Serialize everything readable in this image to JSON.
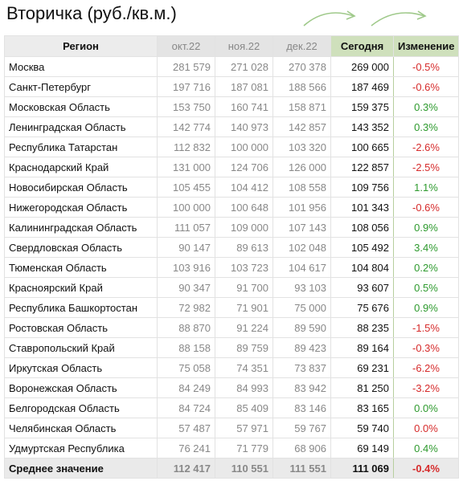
{
  "title": "Вторичка (руб./кв.м.)",
  "colors": {
    "positive": "#2e9a2e",
    "negative": "#d62b2b",
    "highlight_header": "#cfe0bc",
    "arrow": "#9fc98a"
  },
  "headers": {
    "region": "Регион",
    "m1": "окт.22",
    "m2": "ноя.22",
    "m3": "дек.22",
    "today": "Сегодня",
    "change": "Изменение"
  },
  "rows": [
    {
      "region": "Москва",
      "m1": "281 579",
      "m2": "271 028",
      "m3": "270 378",
      "today": "269 000",
      "change": "-0.5%",
      "dir": "neg"
    },
    {
      "region": "Санкт-Петербург",
      "m1": "197 716",
      "m2": "187 081",
      "m3": "188 566",
      "today": "187 469",
      "change": "-0.6%",
      "dir": "neg"
    },
    {
      "region": "Московская Область",
      "m1": "153 750",
      "m2": "160 741",
      "m3": "158 871",
      "today": "159 375",
      "change": "0.3%",
      "dir": "pos"
    },
    {
      "region": "Ленинградская Область",
      "m1": "142 774",
      "m2": "140 973",
      "m3": "142 857",
      "today": "143 352",
      "change": "0.3%",
      "dir": "pos"
    },
    {
      "region": "Республика Татарстан",
      "m1": "112 832",
      "m2": "100 000",
      "m3": "103 320",
      "today": "100 665",
      "change": "-2.6%",
      "dir": "neg"
    },
    {
      "region": "Краснодарский Край",
      "m1": "131 000",
      "m2": "124 706",
      "m3": "126 000",
      "today": "122 857",
      "change": "-2.5%",
      "dir": "neg"
    },
    {
      "region": "Новосибирская Область",
      "m1": "105 455",
      "m2": "104 412",
      "m3": "108 558",
      "today": "109 756",
      "change": "1.1%",
      "dir": "pos"
    },
    {
      "region": "Нижегородская Область",
      "m1": "100 000",
      "m2": "100 648",
      "m3": "101 956",
      "today": "101 343",
      "change": "-0.6%",
      "dir": "neg"
    },
    {
      "region": "Калининградская Область",
      "m1": "111 057",
      "m2": "109 000",
      "m3": "107 143",
      "today": "108 056",
      "change": "0.9%",
      "dir": "pos"
    },
    {
      "region": "Свердловская Область",
      "m1": "90 147",
      "m2": "89 613",
      "m3": "102 048",
      "today": "105 492",
      "change": "3.4%",
      "dir": "pos"
    },
    {
      "region": "Тюменская Область",
      "m1": "103 916",
      "m2": "103 723",
      "m3": "104 617",
      "today": "104 804",
      "change": "0.2%",
      "dir": "pos"
    },
    {
      "region": "Красноярский Край",
      "m1": "90 347",
      "m2": "91 700",
      "m3": "93 103",
      "today": "93 607",
      "change": "0.5%",
      "dir": "pos"
    },
    {
      "region": "Республика Башкортостан",
      "m1": "72 982",
      "m2": "71 901",
      "m3": "75 000",
      "today": "75 676",
      "change": "0.9%",
      "dir": "pos"
    },
    {
      "region": "Ростовская Область",
      "m1": "88 870",
      "m2": "91 224",
      "m3": "89 590",
      "today": "88 235",
      "change": "-1.5%",
      "dir": "neg"
    },
    {
      "region": "Ставропольский Край",
      "m1": "88 158",
      "m2": "89 759",
      "m3": "89 423",
      "today": "89 164",
      "change": "-0.3%",
      "dir": "neg"
    },
    {
      "region": "Иркутская Область",
      "m1": "75 058",
      "m2": "74 351",
      "m3": "73 837",
      "today": "69 231",
      "change": "-6.2%",
      "dir": "neg"
    },
    {
      "region": "Воронежская Область",
      "m1": "84 249",
      "m2": "84 993",
      "m3": "83 942",
      "today": "81 250",
      "change": "-3.2%",
      "dir": "neg"
    },
    {
      "region": "Белгородская Область",
      "m1": "84 724",
      "m2": "85 409",
      "m3": "83 146",
      "today": "83 165",
      "change": "0.0%",
      "dir": "zero"
    },
    {
      "region": "Челябинская Область",
      "m1": "57 487",
      "m2": "57 971",
      "m3": "59 767",
      "today": "59 740",
      "change": "0.0%",
      "dir": "neg"
    },
    {
      "region": "Удмуртская Республика",
      "m1": "76 241",
      "m2": "71 779",
      "m3": "68 906",
      "today": "69 149",
      "change": "0.4%",
      "dir": "pos"
    }
  ],
  "footer": {
    "region": "Среднее значение",
    "m1": "112 417",
    "m2": "110 551",
    "m3": "111 551",
    "today": "111 069",
    "change": "-0.4%",
    "dir": "neg"
  }
}
